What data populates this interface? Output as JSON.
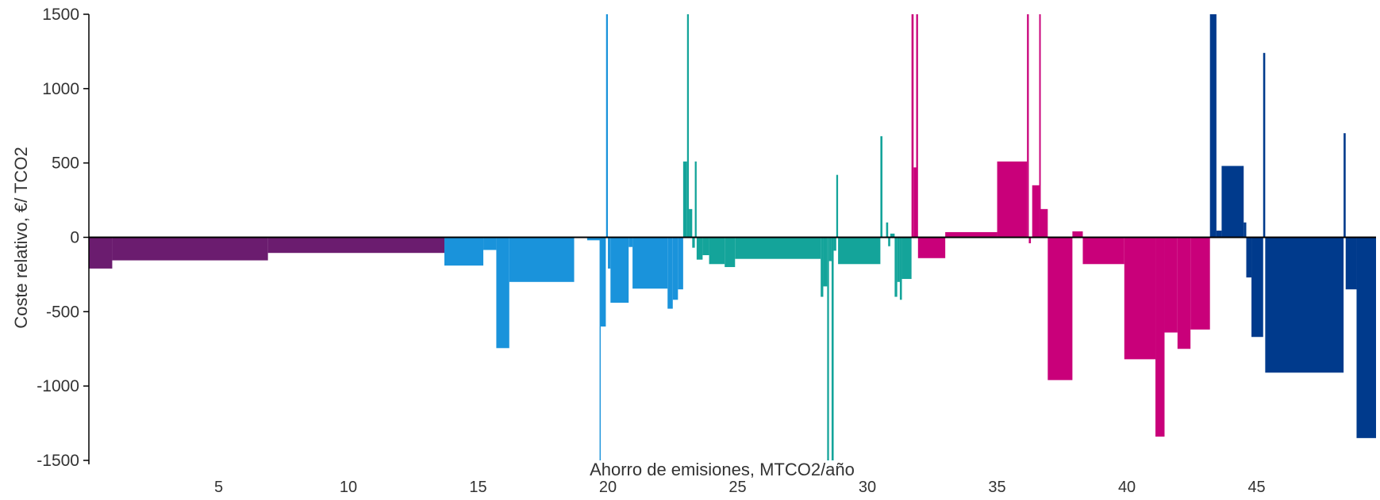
{
  "chart_data": {
    "type": "bar",
    "subtype": "marginal-abatement-cost-curve",
    "xlabel": "Ahorro de emisiones, MTCO2/año",
    "ylabel": "Coste relativo, €/ TCO2",
    "xlim": [
      0,
      49.6
    ],
    "ylim": [
      -1500,
      1500
    ],
    "x_ticks": [
      5,
      10,
      15,
      20,
      25,
      30,
      35,
      40,
      45
    ],
    "x_tick_labels": [
      "5",
      "10",
      "15",
      "20",
      "25",
      "30",
      "35",
      "40",
      "45"
    ],
    "y_ticks": [
      1500,
      1000,
      500,
      0,
      -500,
      -1000,
      -1500
    ],
    "y_tick_labels": [
      "1500",
      "1000",
      "500",
      "0",
      "-500",
      "-1000",
      "-1500"
    ],
    "grid": false,
    "legend": "none",
    "series": [
      {
        "color": "#6b1c6f",
        "segments": [
          {
            "x0": 0.0,
            "x1": 0.9,
            "y": -210
          },
          {
            "x0": 0.9,
            "x1": 6.9,
            "y": -155
          },
          {
            "x0": 6.9,
            "x1": 13.7,
            "y": -105
          }
        ]
      },
      {
        "color": "#1a93db",
        "segments": [
          {
            "x0": 13.7,
            "x1": 15.2,
            "y": -190
          },
          {
            "x0": 15.2,
            "x1": 15.7,
            "y": -85
          },
          {
            "x0": 15.7,
            "x1": 16.2,
            "y": -745
          },
          {
            "x0": 16.2,
            "x1": 18.7,
            "y": -300
          },
          {
            "x0": 19.2,
            "x1": 19.7,
            "y": -20
          },
          {
            "x0": 19.68,
            "x1": 19.72,
            "y": -1500
          },
          {
            "x0": 19.72,
            "x1": 19.92,
            "y": -600
          },
          {
            "x0": 19.93,
            "x1": 20.0,
            "y": 1500
          },
          {
            "x0": 20.0,
            "x1": 20.1,
            "y": -210
          },
          {
            "x0": 20.1,
            "x1": 20.8,
            "y": -440
          },
          {
            "x0": 20.8,
            "x1": 20.95,
            "y": -65
          },
          {
            "x0": 20.95,
            "x1": 22.3,
            "y": -345
          },
          {
            "x0": 22.3,
            "x1": 22.5,
            "y": -480
          },
          {
            "x0": 22.5,
            "x1": 22.7,
            "y": -420
          },
          {
            "x0": 22.7,
            "x1": 22.9,
            "y": -350
          }
        ]
      },
      {
        "color": "#14a49a",
        "segments": [
          {
            "x0": 22.9,
            "x1": 23.05,
            "y": 510
          },
          {
            "x0": 23.05,
            "x1": 23.12,
            "y": 1500
          },
          {
            "x0": 23.12,
            "x1": 23.25,
            "y": 190
          },
          {
            "x0": 23.25,
            "x1": 23.35,
            "y": -70
          },
          {
            "x0": 23.35,
            "x1": 23.42,
            "y": 510
          },
          {
            "x0": 23.42,
            "x1": 23.65,
            "y": -150
          },
          {
            "x0": 23.65,
            "x1": 23.9,
            "y": -120
          },
          {
            "x0": 23.9,
            "x1": 24.5,
            "y": -180
          },
          {
            "x0": 24.5,
            "x1": 24.9,
            "y": -200
          },
          {
            "x0": 24.9,
            "x1": 28.2,
            "y": -145
          },
          {
            "x0": 28.2,
            "x1": 28.3,
            "y": -400
          },
          {
            "x0": 28.3,
            "x1": 28.45,
            "y": -330
          },
          {
            "x0": 28.45,
            "x1": 28.52,
            "y": -1500
          },
          {
            "x0": 28.52,
            "x1": 28.62,
            "y": -160
          },
          {
            "x0": 28.62,
            "x1": 28.7,
            "y": -1500
          },
          {
            "x0": 28.7,
            "x1": 28.8,
            "y": -90
          },
          {
            "x0": 28.8,
            "x1": 28.87,
            "y": 420
          },
          {
            "x0": 28.87,
            "x1": 30.5,
            "y": -180
          },
          {
            "x0": 30.5,
            "x1": 30.58,
            "y": 680
          },
          {
            "x0": 30.58,
            "x1": 30.72,
            "y": -5
          },
          {
            "x0": 30.72,
            "x1": 30.8,
            "y": 100
          },
          {
            "x0": 30.8,
            "x1": 30.88,
            "y": -60
          },
          {
            "x0": 30.88,
            "x1": 31.05,
            "y": 25
          },
          {
            "x0": 31.05,
            "x1": 31.15,
            "y": -400
          },
          {
            "x0": 31.15,
            "x1": 31.25,
            "y": -300
          },
          {
            "x0": 31.25,
            "x1": 31.33,
            "y": -420
          },
          {
            "x0": 31.33,
            "x1": 31.7,
            "y": -280
          }
        ]
      },
      {
        "color": "#c9007a",
        "segments": [
          {
            "x0": 31.7,
            "x1": 31.78,
            "y": 1500
          },
          {
            "x0": 31.78,
            "x1": 31.88,
            "y": 470
          },
          {
            "x0": 31.88,
            "x1": 31.95,
            "y": 1500
          },
          {
            "x0": 31.95,
            "x1": 33.0,
            "y": -140
          },
          {
            "x0": 33.0,
            "x1": 35.0,
            "y": 35
          },
          {
            "x0": 35.0,
            "x1": 36.15,
            "y": 510
          },
          {
            "x0": 36.15,
            "x1": 36.22,
            "y": 1500
          },
          {
            "x0": 36.22,
            "x1": 36.3,
            "y": -40
          },
          {
            "x0": 36.35,
            "x1": 36.62,
            "y": 350
          },
          {
            "x0": 36.62,
            "x1": 36.68,
            "y": 1500
          },
          {
            "x0": 36.68,
            "x1": 36.95,
            "y": 190
          },
          {
            "x0": 36.95,
            "x1": 37.9,
            "y": -960
          },
          {
            "x0": 37.9,
            "x1": 38.3,
            "y": 40
          },
          {
            "x0": 38.3,
            "x1": 39.9,
            "y": -180
          },
          {
            "x0": 39.9,
            "x1": 41.1,
            "y": -820
          },
          {
            "x0": 41.1,
            "x1": 41.45,
            "y": -1340
          },
          {
            "x0": 41.45,
            "x1": 41.95,
            "y": -640
          },
          {
            "x0": 41.95,
            "x1": 42.45,
            "y": -750
          },
          {
            "x0": 42.45,
            "x1": 43.2,
            "y": -620
          }
        ]
      },
      {
        "color": "#003a8c",
        "segments": [
          {
            "x0": 43.2,
            "x1": 43.45,
            "y": 1500
          },
          {
            "x0": 43.45,
            "x1": 43.65,
            "y": 45
          },
          {
            "x0": 43.65,
            "x1": 44.5,
            "y": 480
          },
          {
            "x0": 44.5,
            "x1": 44.6,
            "y": 100
          },
          {
            "x0": 44.6,
            "x1": 44.8,
            "y": -270
          },
          {
            "x0": 44.8,
            "x1": 45.25,
            "y": -670
          },
          {
            "x0": 45.25,
            "x1": 45.33,
            "y": 1240
          },
          {
            "x0": 45.33,
            "x1": 48.35,
            "y": -910
          },
          {
            "x0": 48.35,
            "x1": 48.43,
            "y": 700
          },
          {
            "x0": 48.43,
            "x1": 48.85,
            "y": -350
          },
          {
            "x0": 48.85,
            "x1": 49.6,
            "y": -1350
          }
        ]
      }
    ]
  }
}
